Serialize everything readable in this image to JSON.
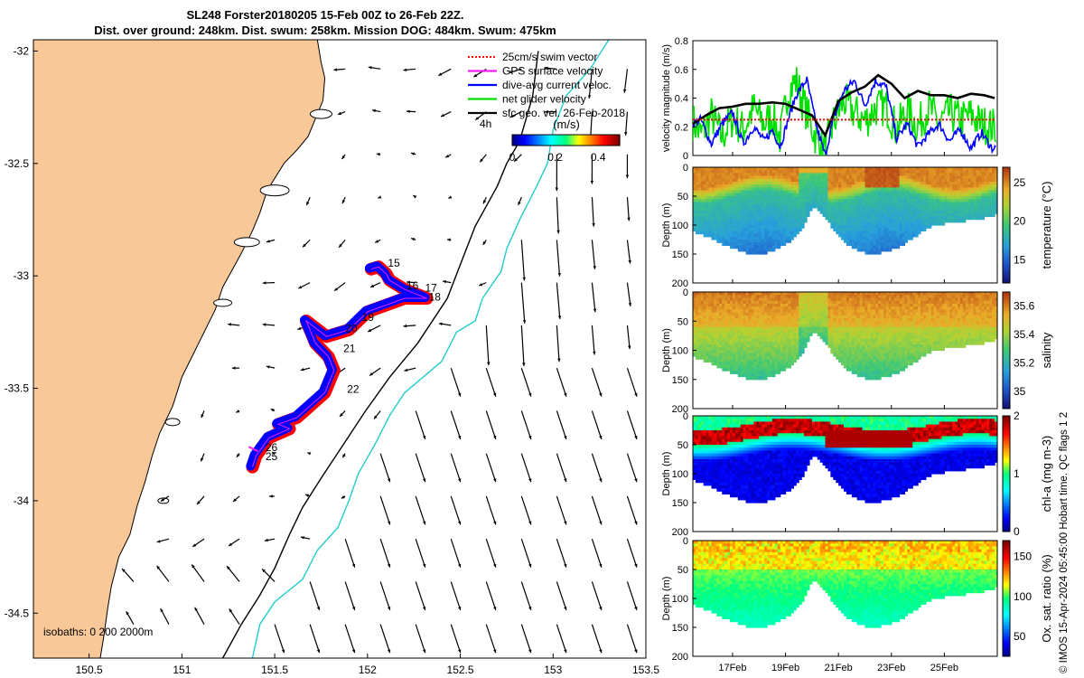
{
  "title": {
    "line1": "SL248 Forster20180205 15-Feb 00Z to 26-Feb 22Z.",
    "line2": "Dist. over ground: 248km. Dist. swum: 258km. Mission DOG: 484km. Swum: 475km"
  },
  "side_note": "© IMOS 15-Apr-2024 05:45:00 Hobart time. QC flags 1 2",
  "colors": {
    "land": "#f8c898",
    "track_red": "#ff0000",
    "track_blue": "#0000ff",
    "iso_200": "#000000",
    "iso_2000": "#22cccc",
    "gps_magenta": "#ee22ee",
    "net_green": "#00e000"
  },
  "map": {
    "xlim": [
      150.2,
      153.5
    ],
    "ylim": [
      -34.7,
      -31.95
    ],
    "xticks": [
      "150.5",
      "151",
      "151.5",
      "152",
      "152.5",
      "153",
      "153.5"
    ],
    "yticks": [
      "-32",
      "-32.5",
      "-33",
      "-33.5",
      "-34",
      "-34.5"
    ],
    "legend": [
      {
        "label": "25cm/s swim vector",
        "color": "#ff0000",
        "style": "dotted"
      },
      {
        "label": "GPS surface velocity",
        "color": "#ee22ee",
        "style": "solid"
      },
      {
        "label": "dive-avg current veloc.",
        "color": "#0000ff",
        "style": "solid"
      },
      {
        "label": "net glider velocity",
        "color": "#00e000",
        "style": "solid"
      },
      {
        "label": "sfc geo. vel. 26-Feb-2018",
        "color": "#000000",
        "style": "solid"
      }
    ],
    "legend_4h": "4h",
    "colorbar": {
      "title": "(m/s)",
      "ticks": [
        "0",
        "0.2",
        "0.4"
      ],
      "range": [
        0,
        0.5
      ]
    },
    "isobath_note": "isobaths: 0   200  2000m",
    "day_labels": [
      {
        "label": "15",
        "lon": 152.11,
        "lat": -32.96
      },
      {
        "label": "16",
        "lon": 152.21,
        "lat": -33.06
      },
      {
        "label": "17",
        "lon": 152.31,
        "lat": -33.07
      },
      {
        "label": "18",
        "lon": 152.33,
        "lat": -33.11
      },
      {
        "label": "19",
        "lon": 151.97,
        "lat": -33.2
      },
      {
        "label": "20",
        "lon": 151.88,
        "lat": -33.25
      },
      {
        "label": "21",
        "lon": 151.87,
        "lat": -33.34
      },
      {
        "label": "22",
        "lon": 151.89,
        "lat": -33.52
      },
      {
        "label": "26",
        "lon": 151.45,
        "lat": -33.78
      },
      {
        "label": "25",
        "lon": 151.45,
        "lat": -33.82
      }
    ],
    "track": [
      [
        152.02,
        -32.97
      ],
      [
        152.06,
        -32.96
      ],
      [
        152.1,
        -32.99
      ],
      [
        152.12,
        -33.02
      ],
      [
        152.2,
        -33.06
      ],
      [
        152.32,
        -33.1
      ],
      [
        152.2,
        -33.1
      ],
      [
        152.0,
        -33.16
      ],
      [
        151.9,
        -33.24
      ],
      [
        151.78,
        -33.27
      ],
      [
        151.67,
        -33.2
      ],
      [
        151.7,
        -33.26
      ],
      [
        151.72,
        -33.3
      ],
      [
        151.79,
        -33.36
      ],
      [
        151.82,
        -33.42
      ],
      [
        151.77,
        -33.52
      ],
      [
        151.62,
        -33.63
      ],
      [
        151.52,
        -33.66
      ],
      [
        151.58,
        -33.68
      ],
      [
        151.47,
        -33.72
      ],
      [
        151.4,
        -33.8
      ],
      [
        151.38,
        -33.85
      ]
    ],
    "coast": [
      [
        150.2,
        -31.95
      ],
      [
        151.73,
        -31.95
      ],
      [
        151.75,
        -32.05
      ],
      [
        151.77,
        -32.12
      ],
      [
        151.76,
        -32.22
      ],
      [
        151.72,
        -32.3
      ],
      [
        151.68,
        -32.38
      ],
      [
        151.62,
        -32.44
      ],
      [
        151.55,
        -32.5
      ],
      [
        151.46,
        -32.62
      ],
      [
        151.42,
        -32.72
      ],
      [
        151.38,
        -32.8
      ],
      [
        151.32,
        -32.9
      ],
      [
        151.28,
        -32.96
      ],
      [
        151.22,
        -33.05
      ],
      [
        151.18,
        -33.15
      ],
      [
        151.12,
        -33.25
      ],
      [
        151.06,
        -33.35
      ],
      [
        151.0,
        -33.45
      ],
      [
        150.95,
        -33.58
      ],
      [
        150.88,
        -33.7
      ],
      [
        150.84,
        -33.8
      ],
      [
        150.8,
        -33.92
      ],
      [
        150.76,
        -34.02
      ],
      [
        150.72,
        -34.15
      ],
      [
        150.66,
        -34.25
      ],
      [
        150.62,
        -34.38
      ],
      [
        150.6,
        -34.48
      ],
      [
        150.58,
        -34.6
      ],
      [
        150.56,
        -34.7
      ],
      [
        150.2,
        -34.7
      ]
    ],
    "isobath_200": [
      [
        152.92,
        -32.0
      ],
      [
        152.89,
        -32.2
      ],
      [
        152.82,
        -32.4
      ],
      [
        152.75,
        -32.5
      ],
      [
        152.7,
        -32.6
      ],
      [
        152.58,
        -32.78
      ],
      [
        152.5,
        -32.95
      ],
      [
        152.43,
        -33.1
      ],
      [
        152.27,
        -33.3
      ],
      [
        152.12,
        -33.45
      ],
      [
        151.99,
        -33.6
      ],
      [
        151.87,
        -33.75
      ],
      [
        151.75,
        -33.9
      ],
      [
        151.65,
        -34.03
      ],
      [
        151.58,
        -34.15
      ],
      [
        151.5,
        -34.3
      ],
      [
        151.42,
        -34.42
      ],
      [
        151.32,
        -34.55
      ],
      [
        151.22,
        -34.7
      ]
    ],
    "isobath_2000": [
      [
        153.3,
        -31.95
      ],
      [
        153.2,
        -32.08
      ],
      [
        153.07,
        -32.2
      ],
      [
        153.0,
        -32.35
      ],
      [
        152.97,
        -32.5
      ],
      [
        152.9,
        -32.62
      ],
      [
        152.82,
        -32.75
      ],
      [
        152.75,
        -32.88
      ],
      [
        152.72,
        -32.98
      ],
      [
        152.62,
        -33.1
      ],
      [
        152.58,
        -33.2
      ],
      [
        152.48,
        -33.25
      ],
      [
        152.4,
        -33.38
      ],
      [
        152.2,
        -33.52
      ],
      [
        152.12,
        -33.62
      ],
      [
        152.04,
        -33.75
      ],
      [
        151.95,
        -33.88
      ],
      [
        151.9,
        -34.0
      ],
      [
        151.84,
        -34.12
      ],
      [
        151.73,
        -34.22
      ],
      [
        151.65,
        -34.35
      ],
      [
        151.5,
        -34.45
      ],
      [
        151.42,
        -34.55
      ],
      [
        151.38,
        -34.7
      ]
    ]
  },
  "chart_data": [
    {
      "type": "line",
      "title": "velocity magnitude",
      "ylabel": "velocity magnitude (m/s)",
      "xlabel": "",
      "xlim": [
        15.5,
        27.0
      ],
      "ylim": [
        0,
        0.8
      ],
      "yticks": [
        "0",
        "0.2",
        "0.4",
        "0.6",
        "0.8"
      ],
      "xticks": [
        {
          "label": "17Feb",
          "day": 17
        },
        {
          "label": "19Feb",
          "day": 19
        },
        {
          "label": "21Feb",
          "day": 21
        },
        {
          "label": "23Feb",
          "day": 23
        },
        {
          "label": "25Feb",
          "day": 25
        }
      ],
      "series": [
        {
          "name": "net glider velocity",
          "color": "#00e000",
          "x": [
            15.5,
            15.8,
            16.2,
            16.6,
            17.0,
            17.4,
            17.8,
            18.2,
            18.5,
            18.8,
            19.1,
            19.4,
            19.8,
            20.2,
            20.5,
            20.8,
            21.2,
            21.6,
            22.0,
            22.4,
            22.8,
            23.2,
            23.6,
            24.0,
            24.4,
            24.8,
            25.2,
            25.6,
            26.0,
            26.4,
            26.8
          ],
          "values": [
            0.24,
            0.14,
            0.28,
            0.13,
            0.26,
            0.18,
            0.33,
            0.22,
            0.28,
            0.12,
            0.45,
            0.52,
            0.3,
            0.1,
            0.03,
            0.22,
            0.38,
            0.3,
            0.24,
            0.33,
            0.34,
            0.18,
            0.32,
            0.2,
            0.34,
            0.22,
            0.3,
            0.25,
            0.28,
            0.22,
            0.2
          ]
        },
        {
          "name": "dive-avg current veloc.",
          "color": "#0000ff",
          "x": [
            15.5,
            15.8,
            16.2,
            16.6,
            17.0,
            17.4,
            17.8,
            18.2,
            18.5,
            18.8,
            19.1,
            19.4,
            19.8,
            20.2,
            20.5,
            20.8,
            21.2,
            21.6,
            22.0,
            22.4,
            22.8,
            23.2,
            23.6,
            24.0,
            24.4,
            24.8,
            25.2,
            25.6,
            26.0,
            26.4,
            26.8
          ],
          "values": [
            0.22,
            0.25,
            0.08,
            0.22,
            0.3,
            0.08,
            0.2,
            0.1,
            0.18,
            0.06,
            0.25,
            0.42,
            0.53,
            0.18,
            0.0,
            0.25,
            0.45,
            0.52,
            0.35,
            0.52,
            0.48,
            0.12,
            0.22,
            0.06,
            0.15,
            0.22,
            0.1,
            0.18,
            0.05,
            0.16,
            0.05
          ]
        },
        {
          "name": "sfc geo. vel.",
          "color": "#000000",
          "x": [
            15.5,
            16.0,
            16.5,
            17.0,
            17.5,
            18.0,
            18.5,
            19.0,
            19.5,
            20.0,
            20.5,
            21.0,
            21.5,
            22.0,
            22.5,
            23.0,
            23.5,
            24.0,
            24.5,
            25.0,
            25.5,
            26.0,
            26.5,
            26.9
          ],
          "values": [
            0.22,
            0.28,
            0.33,
            0.34,
            0.36,
            0.36,
            0.37,
            0.36,
            0.32,
            0.28,
            0.14,
            0.38,
            0.44,
            0.48,
            0.56,
            0.5,
            0.4,
            0.45,
            0.42,
            0.42,
            0.4,
            0.43,
            0.42,
            0.4
          ]
        },
        {
          "name": "25cm/s swim vector",
          "color": "#ff0000",
          "style": "dotted",
          "x": [
            15.5,
            26.9
          ],
          "values": [
            0.25,
            0.25
          ]
        }
      ]
    },
    {
      "type": "heatmap",
      "variable": "temperature",
      "ylabel": "Depth (m)",
      "colorbar_label": "temperature (°C)",
      "yticks": [
        "0",
        "50",
        "100",
        "150",
        "200"
      ],
      "ylim": [
        0,
        200
      ],
      "clim": [
        12,
        27
      ],
      "cbar_ticks": [
        "15",
        "20",
        "25"
      ],
      "xticks": [
        "17Feb",
        "19Feb",
        "21Feb",
        "23Feb",
        "25Feb"
      ],
      "profile_depth": {
        "day": [
          15.5,
          16.0,
          16.5,
          17.0,
          17.5,
          18.0,
          18.5,
          19.0,
          19.5,
          20.0,
          20.5,
          21.0,
          21.5,
          22.0,
          22.5,
          23.0,
          23.5,
          24.0,
          24.5,
          25.0,
          25.5,
          26.0,
          26.5,
          26.9
        ],
        "depth": [
          110,
          118,
          128,
          138,
          146,
          148,
          142,
          130,
          110,
          65,
          88,
          118,
          138,
          145,
          146,
          140,
          128,
          112,
          100,
          95,
          92,
          88,
          85,
          80
        ]
      }
    },
    {
      "type": "heatmap",
      "variable": "salinity",
      "ylabel": "Depth (m)",
      "colorbar_label": "salinity",
      "yticks": [
        "0",
        "50",
        "100",
        "150",
        "200"
      ],
      "ylim": [
        0,
        200
      ],
      "clim": [
        34.88,
        35.7
      ],
      "cbar_ticks": [
        "35",
        "35.2",
        "35.4",
        "35.6"
      ],
      "xticks": [
        "17Feb",
        "19Feb",
        "21Feb",
        "23Feb",
        "25Feb"
      ]
    },
    {
      "type": "heatmap",
      "variable": "chl-a",
      "ylabel": "Depth (m)",
      "colorbar_label": "chl-a (mg m-3)",
      "yticks": [
        "0",
        "50",
        "100",
        "150",
        "200"
      ],
      "ylim": [
        0,
        200
      ],
      "clim": [
        0,
        2
      ],
      "cbar_ticks": [
        "0",
        "1",
        "2"
      ],
      "xticks": [
        "17Feb",
        "19Feb",
        "21Feb",
        "23Feb",
        "25Feb"
      ]
    },
    {
      "type": "heatmap",
      "variable": "oxygen saturation",
      "ylabel": "Depth (m)",
      "colorbar_label": "Ox. sat. ratio (%)",
      "yticks": [
        "0",
        "50",
        "100",
        "150",
        "200"
      ],
      "ylim": [
        0,
        200
      ],
      "clim": [
        25,
        170
      ],
      "cbar_ticks": [
        "50",
        "100",
        "150"
      ],
      "xticks": [
        "17Feb",
        "19Feb",
        "21Feb",
        "23Feb",
        "25Feb"
      ]
    }
  ]
}
